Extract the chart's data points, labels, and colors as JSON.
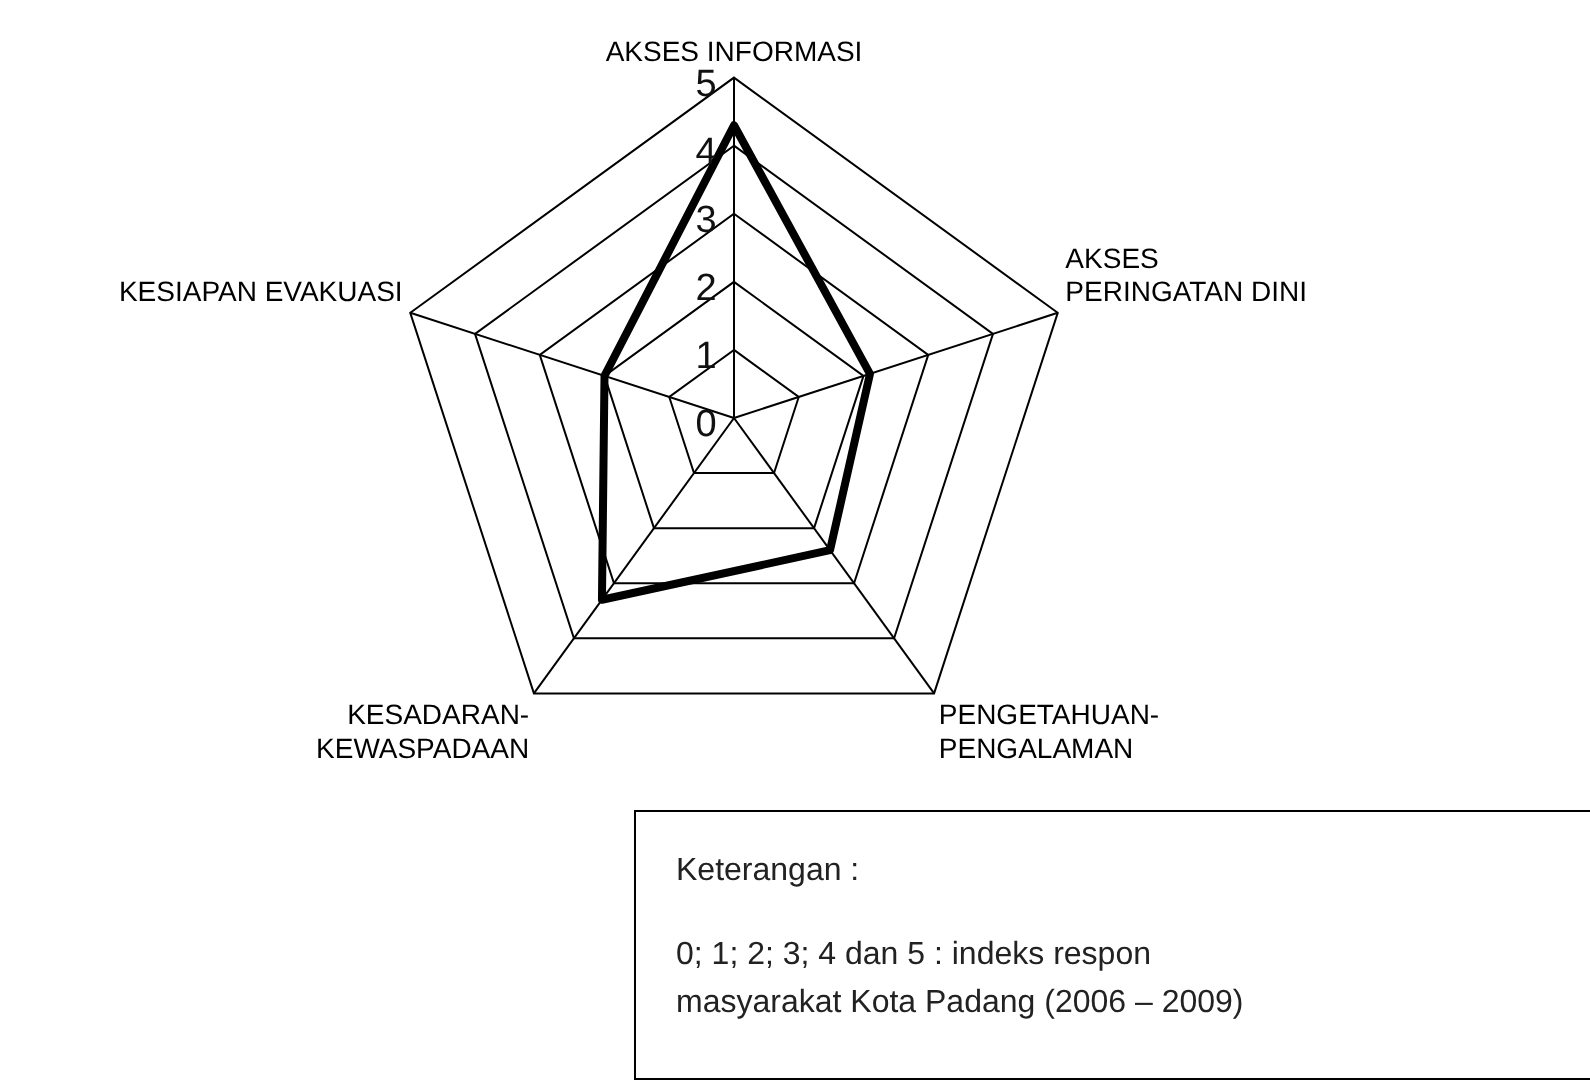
{
  "chart_data": {
    "type": "radar",
    "categories": [
      "AKSES INFORMASI",
      "AKSES PERINGATAN DINI",
      "PENGETAHUAN-PENGALAMAN",
      "KESADARAN-KEWASPADAAN",
      "KESIAPAN EVAKUASI"
    ],
    "series": [
      {
        "color": "#000000",
        "values": [
          4.3,
          2.1,
          2.4,
          3.3,
          2.0
        ]
      }
    ],
    "ylim": [
      0,
      5
    ],
    "yticks": [
      0,
      1,
      2,
      3,
      4,
      5
    ],
    "legend": false,
    "marker": "none",
    "line_style": "solid",
    "annotations": [
      "Keterangan :",
      "0; 1; 2; 3; 4 dan 5 : indeks respon masyarakat Kota Padang (2006 – 2009)"
    ]
  }
}
